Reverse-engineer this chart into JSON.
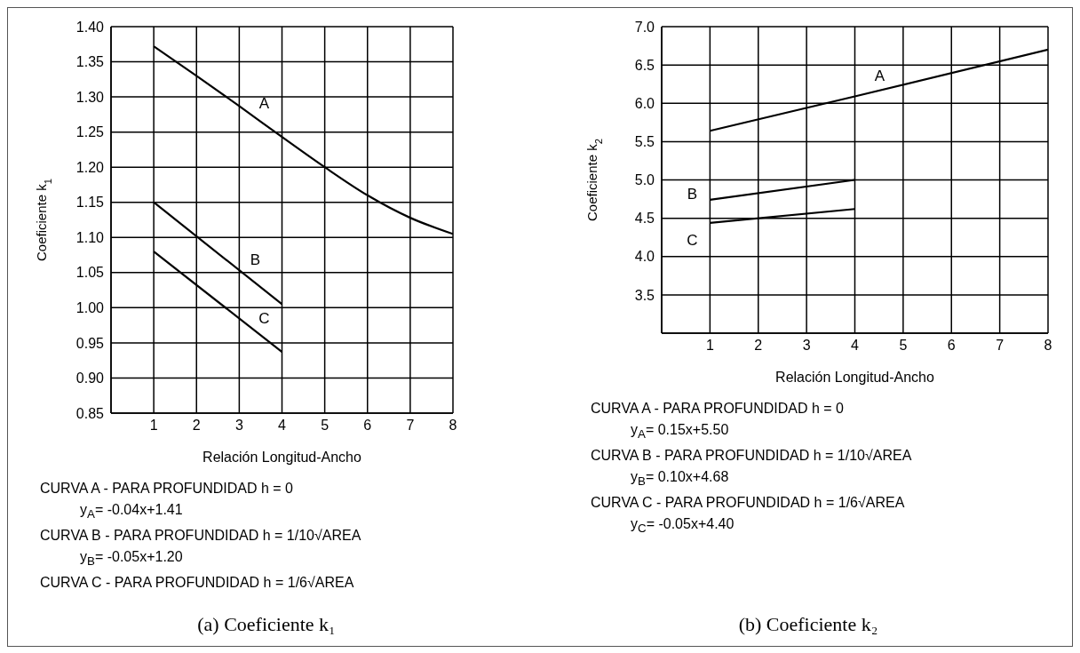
{
  "chart_data": [
    {
      "type": "line",
      "title": "(a) Coeficiente k₁",
      "xlabel": "Relación Longitud-Ancho",
      "ylabel": "Coeficiente k$_{1}$",
      "xlim": [
        0,
        8
      ],
      "xticks": [
        1,
        2,
        3,
        4,
        5,
        6,
        7,
        8
      ],
      "ylim": [
        0.85,
        1.4
      ],
      "yticks": [
        {
          "value": 0.85,
          "label": "0.85"
        },
        {
          "value": 0.9,
          "label": "0.90"
        },
        {
          "value": 0.95,
          "label": "0.95"
        },
        {
          "value": 1.0,
          "label": "1.00"
        },
        {
          "value": 1.05,
          "label": "1.05"
        },
        {
          "value": 1.1,
          "label": "1.10"
        },
        {
          "value": 1.15,
          "label": "1.15"
        },
        {
          "value": 1.2,
          "label": "1.20"
        },
        {
          "value": 1.25,
          "label": "1.25"
        },
        {
          "value": 1.3,
          "label": "1.30"
        },
        {
          "value": 1.35,
          "label": "1.35"
        },
        {
          "value": 1.4,
          "label": "1.40"
        }
      ],
      "grid": true,
      "series": [
        {
          "name": "A",
          "color": "#000000",
          "x": [
            1,
            2,
            3,
            4,
            5,
            6,
            7,
            8
          ],
          "values": [
            1.372,
            1.33,
            1.287,
            1.243,
            1.2,
            1.16,
            1.128,
            1.105
          ]
        },
        {
          "name": "B",
          "color": "#000000",
          "x": [
            1,
            4
          ],
          "values": [
            1.15,
            1.005
          ]
        },
        {
          "name": "C",
          "color": "#000000",
          "x": [
            1,
            4
          ],
          "values": [
            1.08,
            0.937
          ]
        }
      ],
      "annotations": [
        "CURVA A - PARA PROFUNDIDAD h = 0",
        "y$_{A}$= -0.04x+1.41",
        "CURVA B - PARA PROFUNDIDAD h = 1/10√AREA",
        "y$_{B}$= -0.05x+1.20",
        "CURVA C - PARA PROFUNDIDAD h = 1/6√AREA"
      ]
    },
    {
      "type": "line",
      "title": "(b) Coeficiente k₂",
      "xlabel": "Relación Longitud-Ancho",
      "ylabel": "Coeficiente k$_{2}$",
      "xlim": [
        0,
        8
      ],
      "xticks": [
        1,
        2,
        3,
        4,
        5,
        6,
        7,
        8
      ],
      "ylim": [
        3.0,
        7.0
      ],
      "yticks": [
        {
          "value": 3.5,
          "label": "3.5"
        },
        {
          "value": 4.0,
          "label": "4.0"
        },
        {
          "value": 4.5,
          "label": "4.5"
        },
        {
          "value": 5.0,
          "label": "5.0"
        },
        {
          "value": 5.5,
          "label": "5.5"
        },
        {
          "value": 6.0,
          "label": "6.0"
        },
        {
          "value": 6.5,
          "label": "6.5"
        },
        {
          "value": 7.0,
          "label": "7.0"
        }
      ],
      "grid": true,
      "series": [
        {
          "name": "A",
          "color": "#000000",
          "x": [
            1,
            4,
            8
          ],
          "values": [
            5.64,
            6.09,
            6.7
          ]
        },
        {
          "name": "B",
          "color": "#000000",
          "x": [
            1,
            4
          ],
          "values": [
            4.74,
            5.0
          ]
        },
        {
          "name": "C",
          "color": "#000000",
          "x": [
            1,
            4
          ],
          "values": [
            4.44,
            4.62
          ]
        }
      ],
      "annotations": [
        "CURVA A - PARA PROFUNDIDAD h = 0",
        "y$_{A}$= 0.15x+5.50",
        "CURVA B - PARA PROFUNDIDAD h = 1/10√AREA",
        "y$_{B}$= 0.10x+4.68",
        "CURVA C - PARA PROFUNDIDAD h = 1/6√AREA",
        "y$_{C}$= -0.05x+4.40"
      ]
    }
  ]
}
